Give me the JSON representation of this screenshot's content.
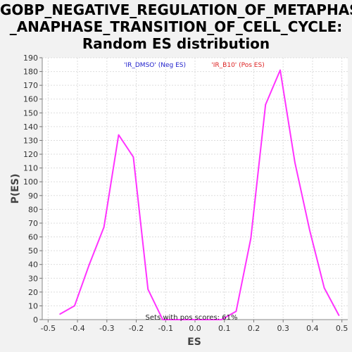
{
  "chart_data": {
    "type": "line",
    "title_lines": [
      "GOBP_NEGATIVE_REGULATION_OF_METAPHASE",
      "_ANAPHASE_TRANSITION_OF_CELL_CYCLE:",
      "Random ES distribution"
    ],
    "xlabel": "ES",
    "ylabel": "P(ES)",
    "xlim": [
      -0.52,
      0.52
    ],
    "ylim": [
      0,
      190
    ],
    "xticks": [
      -0.5,
      -0.4,
      -0.3,
      -0.2,
      -0.1,
      0.0,
      0.1,
      0.2,
      0.3,
      0.4,
      0.5
    ],
    "yticks": [
      0,
      10,
      20,
      30,
      40,
      50,
      60,
      70,
      80,
      90,
      100,
      110,
      120,
      130,
      140,
      150,
      160,
      170,
      180,
      190
    ],
    "grid": true,
    "series": [
      {
        "color": "#ff33ff",
        "x": [
          -0.46,
          -0.41,
          -0.36,
          -0.31,
          -0.26,
          -0.21,
          -0.16,
          -0.11,
          -0.06,
          -0.01,
          0.04,
          0.09,
          0.14,
          0.19,
          0.24,
          0.29,
          0.34,
          0.39,
          0.44,
          0.49
        ],
        "y": [
          4,
          10,
          40,
          67,
          134,
          118,
          22,
          0,
          0,
          0,
          0,
          0,
          6,
          59,
          156,
          181,
          114,
          65,
          23,
          3
        ]
      }
    ],
    "legend": [
      {
        "text": "'IR_DMSO' (Neg ES)",
        "color": "#2222cc"
      },
      {
        "text": "'IR_B10' (Pos ES)",
        "color": "#dd2222"
      }
    ],
    "annotation": "Sets with pos scores: 61%"
  }
}
